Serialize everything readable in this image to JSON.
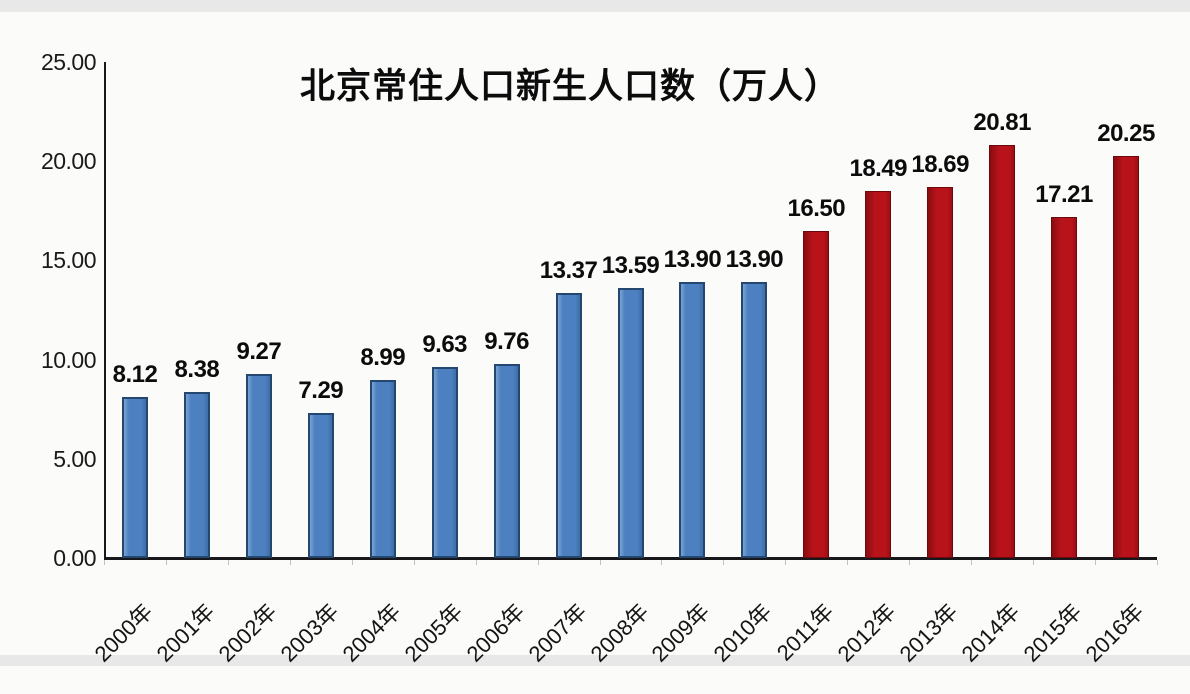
{
  "chart_data": {
    "type": "bar",
    "title": "北京常住人口新生人口数（万人）",
    "categories": [
      "2000年",
      "2001年",
      "2002年",
      "2003年",
      "2004年",
      "2005年",
      "2006年",
      "2007年",
      "2008年",
      "2009年",
      "2010年",
      "2011年",
      "2012年",
      "2013年",
      "2014年",
      "2015年",
      "2016年"
    ],
    "values": [
      8.12,
      8.38,
      9.27,
      7.29,
      8.99,
      9.63,
      9.76,
      13.37,
      13.59,
      13.9,
      13.9,
      16.5,
      18.49,
      18.69,
      20.81,
      17.21,
      20.25
    ],
    "bar_colors": [
      "#4d80c0",
      "#4d80c0",
      "#4d80c0",
      "#4d80c0",
      "#4d80c0",
      "#4d80c0",
      "#4d80c0",
      "#4d80c0",
      "#4d80c0",
      "#4d80c0",
      "#4d80c0",
      "#b8131b",
      "#b8131b",
      "#b8131b",
      "#b8131b",
      "#b8131b",
      "#b8131b"
    ],
    "xlabel": "",
    "ylabel": "",
    "ylim": [
      0,
      25
    ],
    "yticks": [
      "0.00",
      "5.00",
      "10.00",
      "15.00",
      "20.00",
      "25.00"
    ],
    "grid": false,
    "legend": false,
    "data_labels": true,
    "data_label_format": "0.00",
    "x_tick_rotation_deg": 45
  },
  "style": {
    "background": "#fbfbfa",
    "edge_strip": "#e8e8e8",
    "axis_color": "#17171c",
    "blue_fill": "#4d80c0",
    "blue_border": "#24476f",
    "red_fill": "#b8131b",
    "red_border": "#6f080c",
    "label_color": "#0c0c0c"
  }
}
